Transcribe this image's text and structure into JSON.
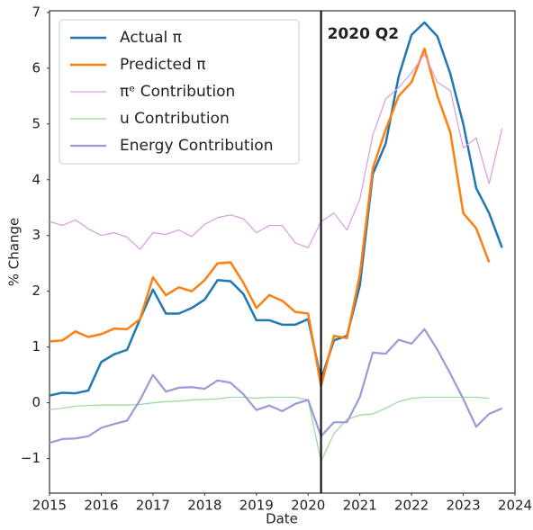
{
  "chart_data": {
    "type": "line",
    "x": [
      2015,
      2015.25,
      2015.5,
      2015.75,
      2016,
      2016.25,
      2016.5,
      2016.75,
      2017,
      2017.25,
      2017.5,
      2017.75,
      2018,
      2018.25,
      2018.5,
      2018.75,
      2019,
      2019.25,
      2019.5,
      2019.75,
      2020,
      2020.25,
      2020.5,
      2020.75,
      2021,
      2021.25,
      2021.5,
      2021.75,
      2022,
      2022.25,
      2022.5,
      2022.75,
      2023,
      2023.25,
      2023.5,
      2023.75
    ],
    "series": [
      {
        "name": "Actual π",
        "color": "#1f77b4",
        "width": 2.5,
        "values": [
          0.13,
          0.18,
          0.17,
          0.22,
          0.73,
          0.87,
          0.95,
          1.5,
          2.03,
          1.6,
          1.6,
          1.7,
          1.85,
          2.2,
          2.18,
          1.95,
          1.48,
          1.48,
          1.4,
          1.4,
          1.5,
          0.42,
          1.12,
          1.2,
          2.1,
          4.1,
          4.65,
          5.85,
          6.6,
          6.82,
          6.57,
          5.9,
          5.0,
          3.85,
          3.4,
          2.78
        ]
      },
      {
        "name": "Predicted π",
        "color": "#ff7f0e",
        "width": 2.5,
        "values": [
          1.1,
          1.12,
          1.28,
          1.18,
          1.23,
          1.33,
          1.32,
          1.5,
          2.25,
          1.93,
          2.07,
          2.0,
          2.2,
          2.5,
          2.52,
          2.15,
          1.7,
          1.93,
          1.83,
          1.63,
          1.6,
          0.3,
          1.2,
          1.16,
          2.3,
          4.2,
          4.9,
          5.5,
          5.75,
          6.35,
          5.5,
          4.85,
          3.4,
          3.13,
          2.52,
          null
        ]
      },
      {
        "name": "πᵉ Contribution",
        "color": "#d99be0",
        "width": 1.2,
        "values": [
          3.25,
          3.18,
          3.28,
          3.12,
          3.0,
          3.05,
          2.97,
          2.75,
          3.05,
          3.02,
          3.1,
          2.98,
          3.2,
          3.32,
          3.37,
          3.3,
          3.05,
          3.18,
          3.18,
          2.87,
          2.78,
          3.25,
          3.4,
          3.1,
          3.65,
          4.8,
          5.45,
          5.65,
          5.92,
          6.25,
          5.75,
          5.6,
          4.57,
          4.75,
          3.93,
          4.92
        ]
      },
      {
        "name": "u Contribution",
        "color": "#98d898",
        "width": 1.2,
        "values": [
          -0.12,
          -0.1,
          -0.06,
          -0.05,
          -0.04,
          -0.04,
          -0.04,
          -0.03,
          0.0,
          0.02,
          0.03,
          0.05,
          0.06,
          0.07,
          0.1,
          0.1,
          0.08,
          0.1,
          0.1,
          0.1,
          0.05,
          -1.05,
          -0.55,
          -0.3,
          -0.22,
          -0.2,
          -0.1,
          0.02,
          0.08,
          0.1,
          0.1,
          0.1,
          0.1,
          0.1,
          0.08,
          null
        ]
      },
      {
        "name": "Energy Contribution",
        "color": "#9a9ad8",
        "width": 2.2,
        "values": [
          -0.72,
          -0.65,
          -0.64,
          -0.6,
          -0.45,
          -0.38,
          -0.32,
          0.05,
          0.5,
          0.2,
          0.27,
          0.28,
          0.25,
          0.4,
          0.36,
          0.15,
          -0.13,
          -0.05,
          -0.15,
          -0.02,
          0.05,
          -0.6,
          -0.35,
          -0.35,
          0.1,
          0.9,
          0.88,
          1.13,
          1.06,
          1.32,
          0.95,
          0.52,
          0.07,
          -0.43,
          -0.2,
          -0.1
        ]
      }
    ],
    "xlabel": "Date",
    "ylabel": "% Change",
    "xlim": [
      2015,
      2024
    ],
    "xticks": [
      2015,
      2016,
      2017,
      2018,
      2019,
      2020,
      2021,
      2022,
      2023,
      2024
    ],
    "ylim": [
      -1.62,
      7.03
    ],
    "yticks": [
      {
        "value": -1,
        "label": "−1"
      },
      0,
      1,
      2,
      3,
      4,
      5,
      6,
      7
    ],
    "grid": false,
    "legend": "upper left",
    "annotations": [
      {
        "x": 2020.25,
        "text": "2020 Q2"
      }
    ]
  }
}
